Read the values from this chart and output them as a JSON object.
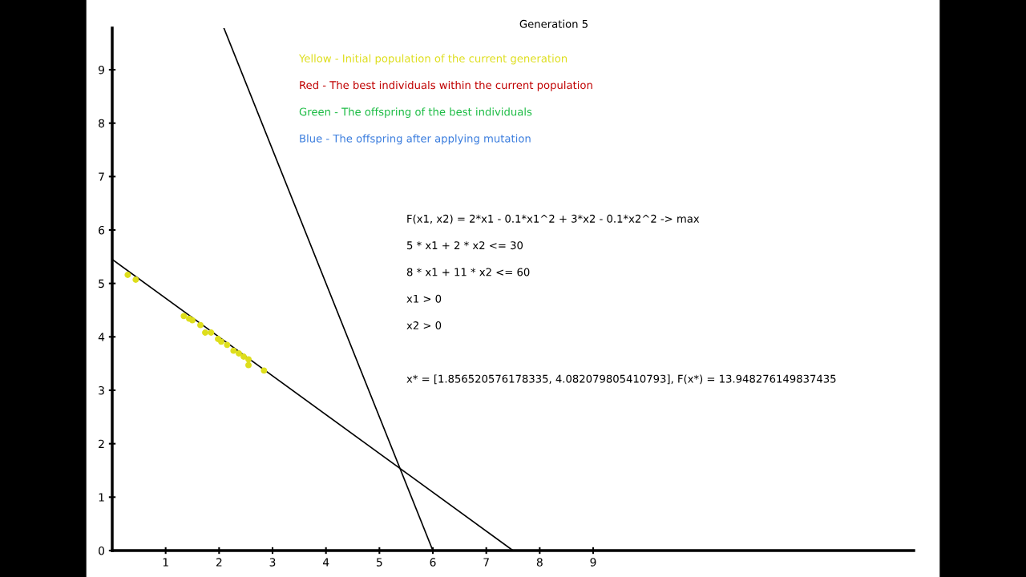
{
  "chart_data": {
    "type": "scatter",
    "title": "Generation 5",
    "xlim": [
      0,
      15
    ],
    "ylim": [
      0,
      9.78
    ],
    "xticks": [
      1,
      2,
      3,
      4,
      5,
      6,
      7,
      8,
      9
    ],
    "yticks": [
      0,
      1,
      2,
      3,
      4,
      5,
      6,
      7,
      8,
      9
    ],
    "grid": false,
    "series": [
      {
        "name": "Yellow - Initial population of the current generation",
        "color": "#dede1c",
        "marker": "circle",
        "x": [
          0.29,
          0.44,
          1.34,
          1.44,
          1.5,
          1.65,
          1.74,
          1.85,
          1.98,
          2.04,
          2.15,
          2.27,
          2.37,
          2.46,
          2.55,
          2.55,
          2.84
        ],
        "values": [
          5.16,
          5.07,
          4.39,
          4.34,
          4.31,
          4.22,
          4.08,
          4.08,
          3.96,
          3.91,
          3.85,
          3.74,
          3.69,
          3.63,
          3.58,
          3.47,
          3.37
        ]
      },
      {
        "name": "Red - The best individuals within the current population",
        "color": "#c00000"
      },
      {
        "name": "Green - The offspring of the best individuals",
        "color": "#1cbc44"
      },
      {
        "name": "Blue - The offspring after applying mutation",
        "color": "#3c7ede"
      },
      {
        "type": "line",
        "color": "#000000",
        "marker": "none",
        "x": [
          2.09,
          6
        ],
        "values": [
          9.78,
          0
        ]
      },
      {
        "type": "line",
        "color": "#000000",
        "marker": "none",
        "x": [
          0,
          7.5
        ],
        "values": [
          5.45,
          0
        ]
      }
    ],
    "annotations": [
      "F(x1, x2) = 2*x1 - 0.1*x1^2 + 3*x2 - 0.1*x2^2 -> max",
      "5 * x1 + 2 * x2 <= 30",
      "8 * x1 + 11 * x2 <= 60",
      "x1 > 0",
      "x2 > 0",
      "x* = [1.856520576178335, 4.082079805410793], F(x*) = 13.948276149837435"
    ]
  }
}
